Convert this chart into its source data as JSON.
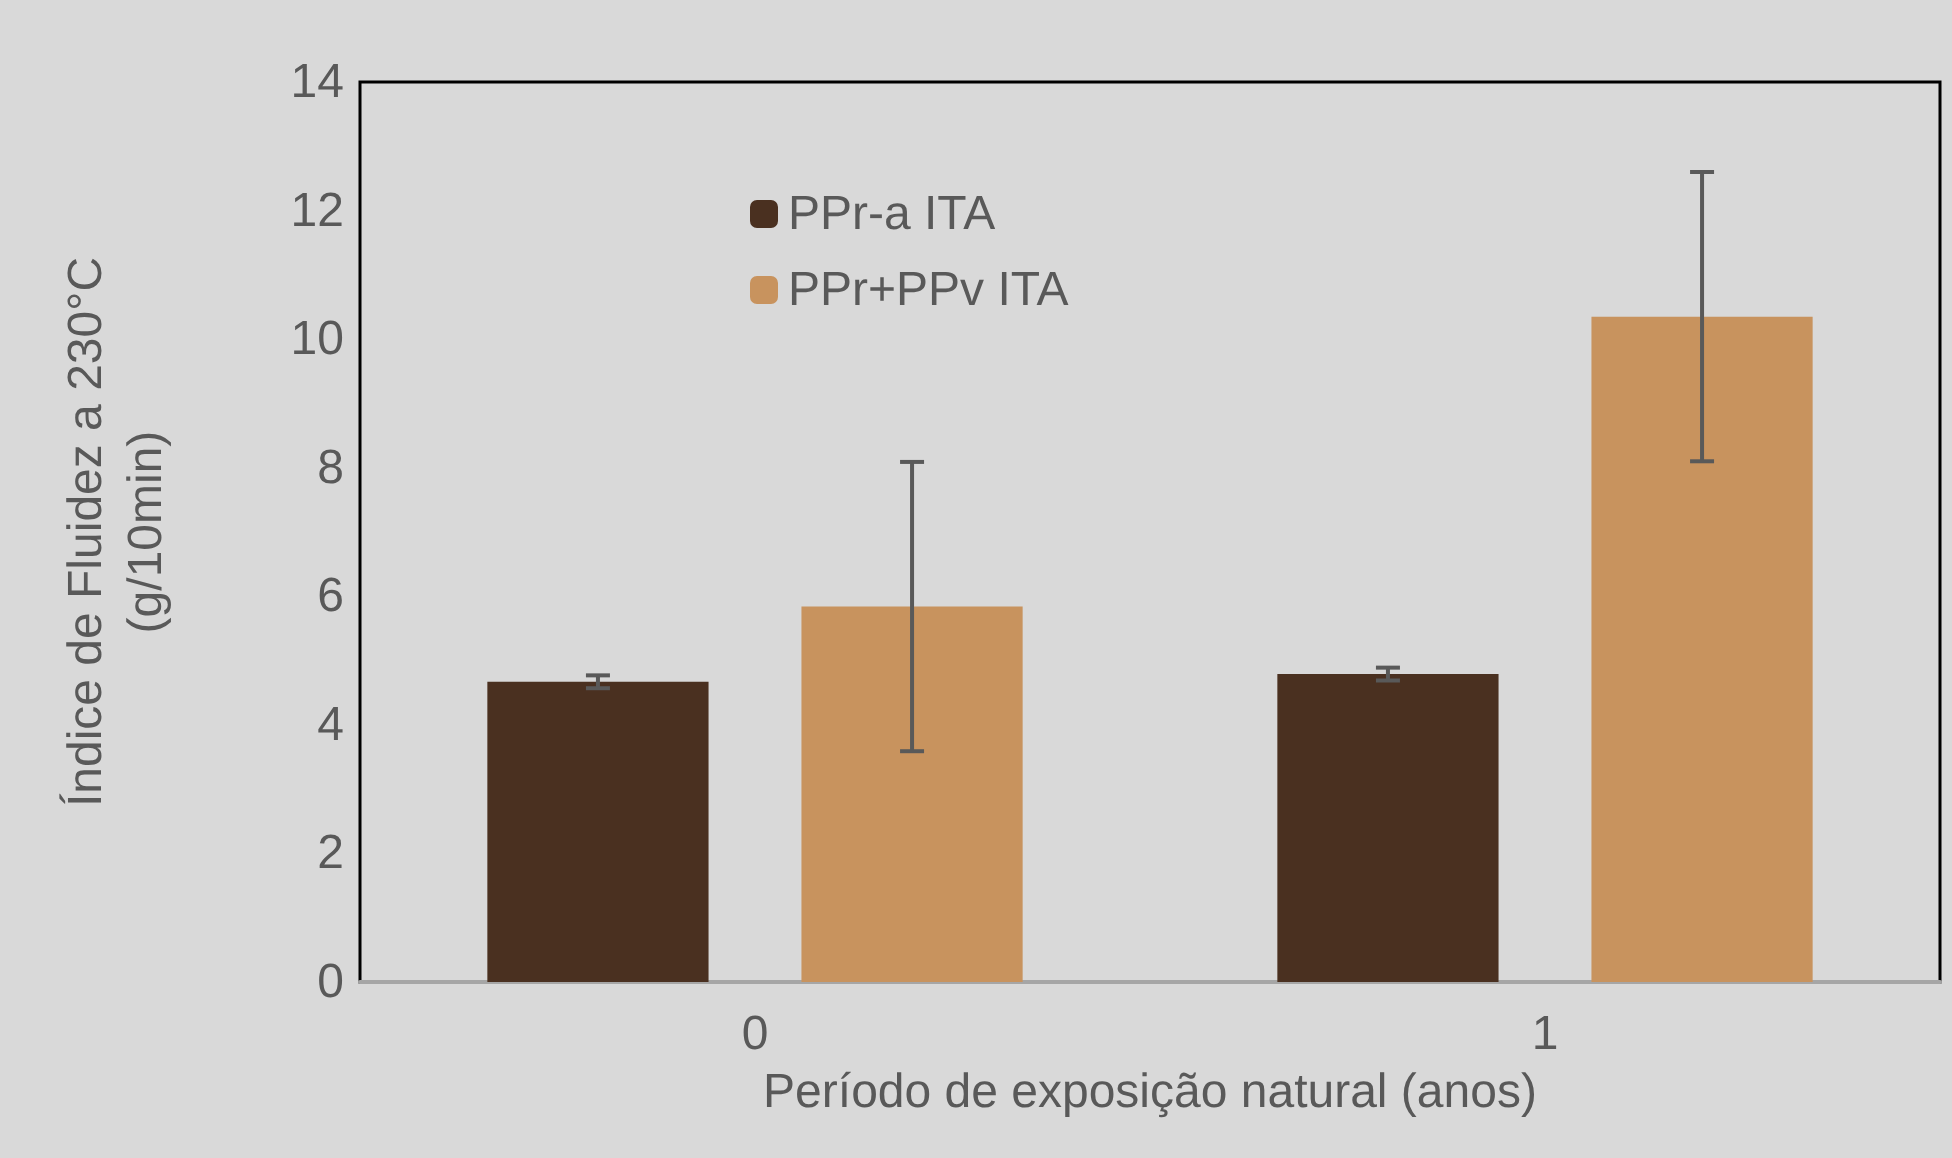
{
  "chart_data": {
    "type": "bar",
    "xlabel": "Período de exposição natural (anos)",
    "ylabel": "Índice de Fluidez a 230°C\n(g/10min)",
    "categories": [
      "0",
      "1"
    ],
    "series": [
      {
        "name": "PPr-a ITA",
        "color": "#4a3020",
        "values": [
          4.67,
          4.79
        ],
        "errors": [
          0.1,
          0.1
        ]
      },
      {
        "name": "PPr+PPv ITA",
        "color": "#c8935e",
        "values": [
          5.84,
          10.35
        ],
        "errors": [
          2.25,
          2.25
        ]
      }
    ],
    "ylim": [
      0,
      14
    ],
    "yticks": [
      0,
      2,
      4,
      6,
      8,
      10,
      12,
      14
    ],
    "grid": false,
    "legend": "top left"
  }
}
